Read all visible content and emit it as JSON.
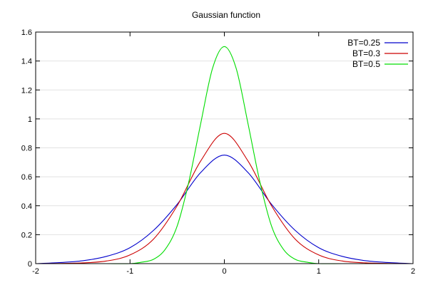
{
  "chart_data": {
    "type": "line",
    "title": "Gaussian function",
    "xlabel": "",
    "ylabel": "",
    "xlim": [
      -2,
      2
    ],
    "ylim": [
      0,
      1.6
    ],
    "x_ticks": [
      -2,
      -1,
      0,
      1,
      2
    ],
    "x_tick_labels": [
      "-2",
      "-1",
      "0",
      "1",
      "2"
    ],
    "y_ticks": [
      0,
      0.2,
      0.4,
      0.6,
      0.8,
      1.0,
      1.2,
      1.4,
      1.6
    ],
    "y_tick_labels": [
      "0",
      "0.2",
      "0.4",
      "0.6",
      "0.8",
      "1",
      "1.2",
      "1.4",
      "1.6"
    ],
    "grid": true,
    "legend_position": "top-right",
    "series": [
      {
        "name": "BT=0.25",
        "color": "#0000cc",
        "x": [
          -2.0,
          -1.75,
          -1.5,
          -1.25,
          -1.0,
          -0.75,
          -0.5,
          -0.25,
          0.0,
          0.25,
          0.5,
          0.75,
          1.0,
          1.25,
          1.5,
          1.75,
          2.0
        ],
        "y": [
          0.0,
          0.007,
          0.02,
          0.05,
          0.11,
          0.23,
          0.41,
          0.63,
          0.75,
          0.63,
          0.41,
          0.23,
          0.11,
          0.05,
          0.02,
          0.007,
          0.0
        ]
      },
      {
        "name": "BT=0.3",
        "color": "#cc0000",
        "x": [
          -2.0,
          -1.75,
          -1.5,
          -1.25,
          -1.0,
          -0.75,
          -0.5,
          -0.25,
          0.0,
          0.25,
          0.5,
          0.75,
          1.0,
          1.25,
          1.5,
          1.75,
          2.0
        ],
        "y": [
          0.0,
          0.001,
          0.005,
          0.018,
          0.06,
          0.17,
          0.4,
          0.71,
          0.9,
          0.71,
          0.4,
          0.17,
          0.06,
          0.018,
          0.005,
          0.001,
          0.0
        ]
      },
      {
        "name": "BT=0.5",
        "color": "#00dd00",
        "x": [
          -2.0,
          -1.5,
          -1.25,
          -1.0,
          -0.875,
          -0.75,
          -0.625,
          -0.5,
          -0.375,
          -0.25,
          -0.125,
          0.0,
          0.125,
          0.25,
          0.375,
          0.5,
          0.625,
          0.75,
          0.875,
          1.0,
          1.25,
          1.5,
          2.0
        ],
        "y": [
          0.0,
          0.0,
          0.0,
          0.0,
          0.01,
          0.03,
          0.1,
          0.26,
          0.57,
          0.97,
          1.35,
          1.5,
          1.35,
          0.97,
          0.57,
          0.26,
          0.1,
          0.03,
          0.01,
          0.0,
          0.0,
          0.0,
          0.0
        ]
      }
    ]
  }
}
